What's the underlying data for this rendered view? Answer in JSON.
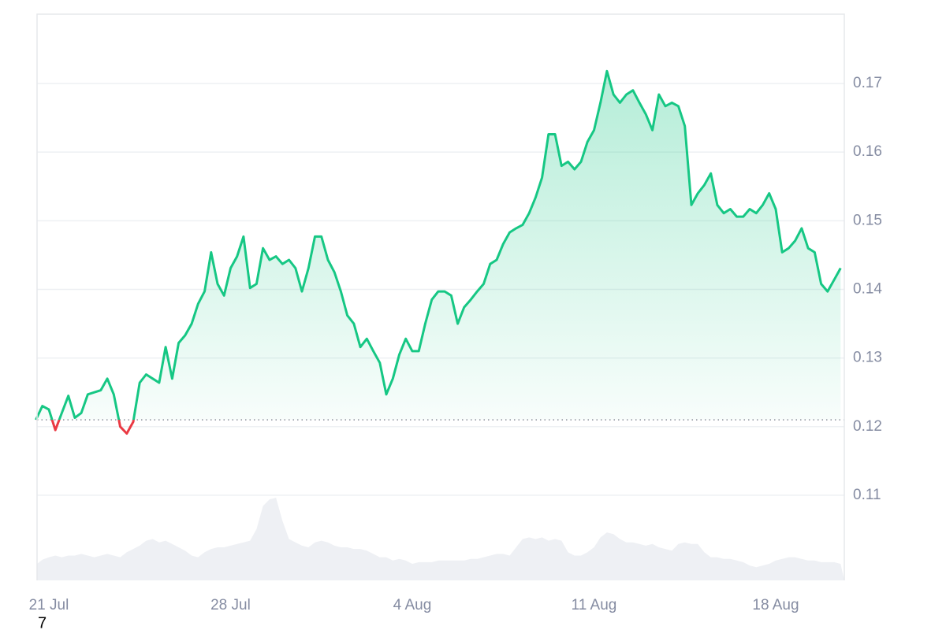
{
  "chart_data": {
    "type": "line",
    "categories": [
      null,
      null,
      "21 Jul",
      null,
      null,
      null,
      null,
      null,
      null,
      null,
      null,
      null,
      null,
      null,
      null,
      null,
      null,
      null,
      null,
      null,
      null,
      null,
      null,
      null,
      null,
      null,
      null,
      null,
      null,
      null,
      "28 Jul",
      null,
      null,
      null,
      null,
      null,
      null,
      null,
      null,
      null,
      null,
      null,
      null,
      null,
      null,
      null,
      null,
      null,
      null,
      null,
      null,
      null,
      null,
      null,
      null,
      null,
      null,
      null,
      "4 Aug",
      null,
      null,
      null,
      null,
      null,
      null,
      null,
      null,
      null,
      null,
      null,
      null,
      null,
      null,
      null,
      null,
      null,
      null,
      null,
      null,
      null,
      null,
      null,
      null,
      null,
      null,
      null,
      "11 Aug",
      null,
      null,
      null,
      null,
      null,
      null,
      null,
      null,
      null,
      null,
      null,
      null,
      null,
      null,
      null,
      null,
      null,
      null,
      null,
      null,
      null,
      null,
      null,
      null,
      null,
      null,
      null,
      "18 Aug",
      null,
      null,
      null,
      null,
      null,
      null,
      null,
      null,
      null,
      null
    ],
    "values": [
      0.121,
      0.123,
      0.1225,
      0.1195,
      0.122,
      0.1245,
      0.1213,
      0.122,
      0.1247,
      0.125,
      0.1253,
      0.127,
      0.1247,
      0.12,
      0.119,
      0.1207,
      0.1264,
      0.1276,
      0.127,
      0.1264,
      0.1316,
      0.127,
      0.1322,
      0.1333,
      0.135,
      0.1379,
      0.1397,
      0.1454,
      0.1408,
      0.1391,
      0.1431,
      0.1448,
      0.1477,
      0.1402,
      0.1408,
      0.146,
      0.1443,
      0.1448,
      0.1437,
      0.1443,
      0.1431,
      0.1397,
      0.1431,
      0.1477,
      0.1477,
      0.1443,
      0.1425,
      0.1397,
      0.1362,
      0.135,
      0.1316,
      0.1328,
      0.131,
      0.1293,
      0.1247,
      0.127,
      0.1305,
      0.1328,
      0.131,
      0.131,
      0.135,
      0.1385,
      0.1397,
      0.1397,
      0.1391,
      0.135,
      0.1374,
      0.1385,
      0.1397,
      0.1408,
      0.1437,
      0.1443,
      0.1466,
      0.1483,
      0.1489,
      0.1494,
      0.1511,
      0.1534,
      0.1563,
      0.1626,
      0.1626,
      0.158,
      0.1586,
      0.1575,
      0.1586,
      0.1615,
      0.1632,
      0.1672,
      0.1718,
      0.1684,
      0.1672,
      0.1684,
      0.169,
      0.1672,
      0.1655,
      0.1632,
      0.1684,
      0.1667,
      0.1672,
      0.1667,
      0.1638,
      0.1523,
      0.154,
      0.1552,
      0.1569,
      0.1523,
      0.1511,
      0.1517,
      0.1506,
      0.1506,
      0.1517,
      0.1511,
      0.1523,
      0.154,
      0.1517,
      0.1454,
      0.146,
      0.1471,
      0.1489,
      0.146,
      0.1454,
      0.1408,
      0.1397,
      0.1414,
      0.1431
    ],
    "color": "#16c784",
    "below_color": "#ea3943",
    "baseline": 0.121,
    "ylim": [
      0.0976,
      0.1801
    ],
    "yticks": [
      0.11,
      0.12,
      0.13,
      0.14,
      0.15,
      0.16,
      0.17
    ],
    "grid": true,
    "volume": {
      "color": "#eef0f4",
      "values": [
        20,
        25,
        28,
        30,
        28,
        30,
        30,
        32,
        30,
        28,
        30,
        32,
        30,
        28,
        34,
        38,
        42,
        48,
        50,
        46,
        48,
        44,
        40,
        36,
        30,
        28,
        34,
        38,
        40,
        40,
        42,
        44,
        46,
        48,
        62,
        90,
        98,
        100,
        72,
        50,
        46,
        42,
        40,
        46,
        48,
        46,
        42,
        40,
        40,
        38,
        38,
        36,
        32,
        28,
        28,
        24,
        26,
        24,
        20,
        22,
        22,
        22,
        24,
        24,
        24,
        24,
        24,
        26,
        26,
        28,
        30,
        32,
        32,
        30,
        40,
        50,
        52,
        50,
        52,
        48,
        50,
        48,
        34,
        30,
        30,
        34,
        40,
        52,
        58,
        56,
        50,
        46,
        46,
        44,
        42,
        44,
        40,
        38,
        36,
        44,
        46,
        44,
        44,
        34,
        28,
        28,
        26,
        26,
        24,
        22,
        18,
        16,
        18,
        20,
        24,
        26,
        28,
        28,
        26,
        24,
        24,
        22,
        22,
        22,
        20
      ]
    },
    "stray_label": "7"
  }
}
